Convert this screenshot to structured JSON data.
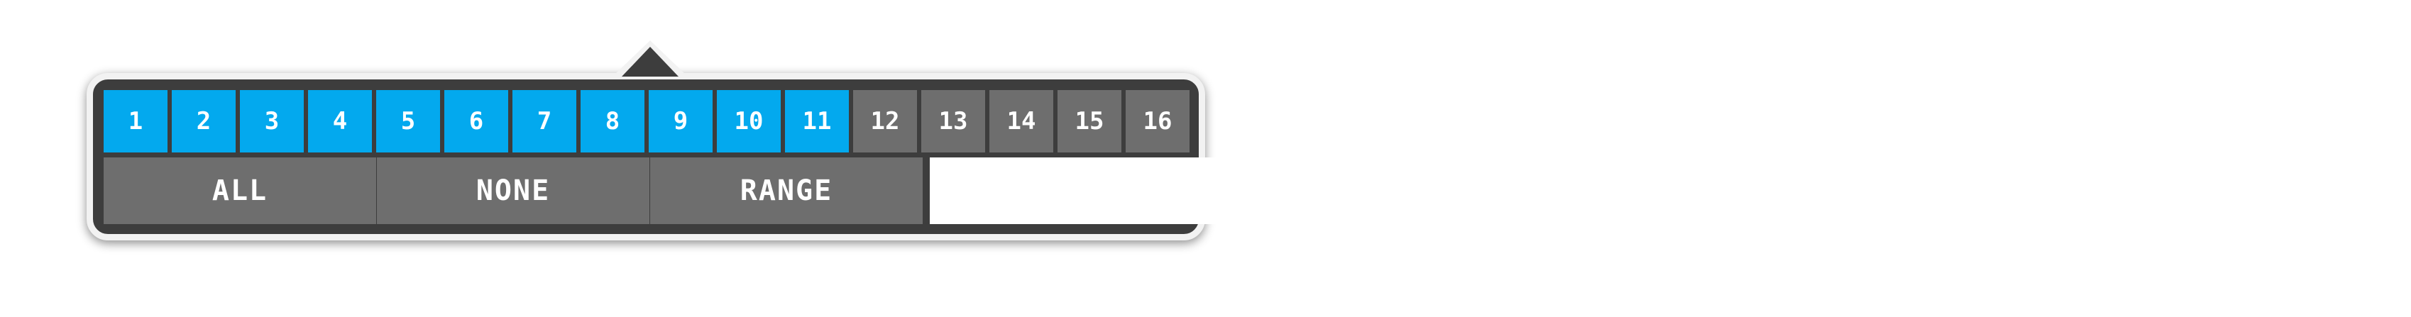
{
  "channels": [
    {
      "label": "1",
      "state": "on"
    },
    {
      "label": "2",
      "state": "on"
    },
    {
      "label": "3",
      "state": "on"
    },
    {
      "label": "4",
      "state": "on"
    },
    {
      "label": "5",
      "state": "on"
    },
    {
      "label": "6",
      "state": "on"
    },
    {
      "label": "7",
      "state": "on"
    },
    {
      "label": "8",
      "state": "on"
    },
    {
      "label": "9",
      "state": "on"
    },
    {
      "label": "10",
      "state": "on"
    },
    {
      "label": "11",
      "state": "on"
    },
    {
      "label": "12",
      "state": "off"
    },
    {
      "label": "13",
      "state": "off"
    },
    {
      "label": "14",
      "state": "off"
    },
    {
      "label": "15",
      "state": "off"
    },
    {
      "label": "16",
      "state": "off"
    }
  ],
  "actions": {
    "all_label": "ALL",
    "none_label": "NONE",
    "range_label": "RANGE"
  },
  "range_field": {
    "value": "",
    "placeholder": ""
  },
  "colors": {
    "selected": "#03a9ee",
    "unselected": "#6e6e6e",
    "panel": "#3d3d3d",
    "border": "#f2f2f2"
  }
}
